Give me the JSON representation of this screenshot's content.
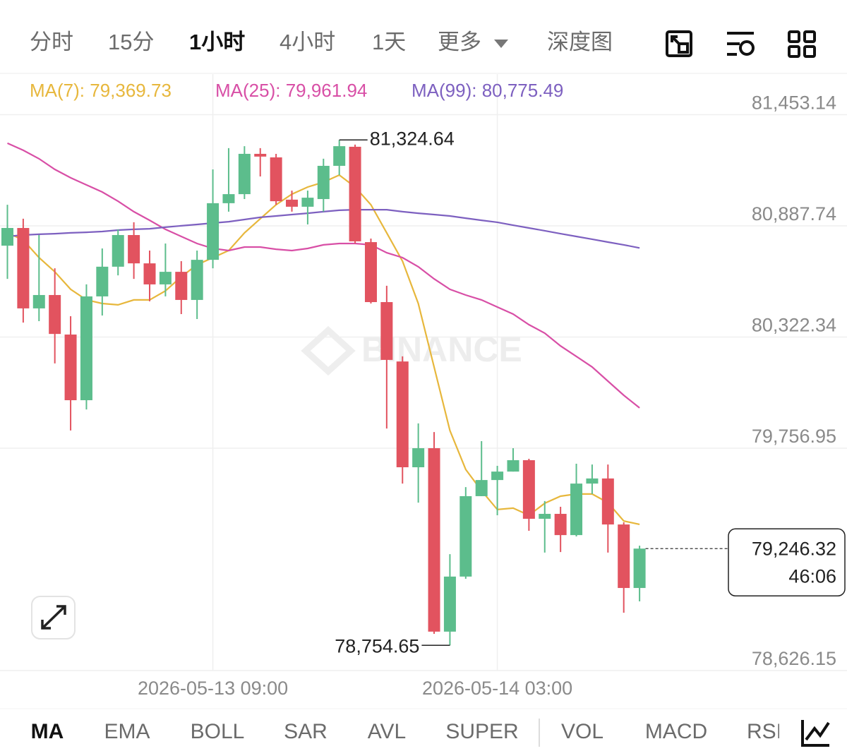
{
  "tabs": [
    "分时",
    "15分",
    "1小时",
    "4小时",
    "1天",
    "更多",
    "深度图"
  ],
  "indicators": [
    "MA",
    "EMA",
    "BOLL",
    "SAR",
    "AVL",
    "SUPER",
    "VOL",
    "MACD",
    "RSI"
  ],
  "chart_data": {
    "type": "candlestick",
    "watermark": "BINANCE",
    "categories": [
      null,
      null,
      null,
      null,
      null,
      null,
      null,
      null,
      null,
      null,
      null,
      null,
      null,
      "2026-05-13 09:00",
      null,
      null,
      null,
      null,
      null,
      null,
      null,
      null,
      null,
      null,
      null,
      null,
      null,
      null,
      null,
      null,
      null,
      "2026-05-14 03:00",
      null,
      null,
      null,
      null,
      null,
      null,
      null,
      null,
      null
    ],
    "open": [
      80787,
      80877,
      80468,
      80536,
      80335,
      80001,
      80529,
      80680,
      80841,
      80697,
      80590,
      80654,
      80511,
      80715,
      81003,
      81049,
      81254,
      81236,
      81021,
      80985,
      81024,
      81193,
      81290,
      80805,
      80500,
      80198,
      79660,
      79757,
      78824,
      79104,
      79513,
      79595,
      79638,
      79696,
      79398,
      79423,
      79315,
      79577,
      79603,
      79369,
      79046
    ],
    "high": [
      80995,
      80924,
      80841,
      80672,
      80428,
      80590,
      80773,
      80870,
      80906,
      80762,
      80798,
      80708,
      80762,
      81175,
      81283,
      81293,
      81283,
      81254,
      81067,
      81067,
      81229,
      81324.64,
      81301,
      80823,
      80583,
      80224,
      79883,
      79839,
      79218,
      79559,
      79793,
      79667,
      79757,
      79703,
      79488,
      79459,
      79678,
      79674,
      79674,
      79380,
      79261
    ],
    "low": [
      80618,
      80396,
      80403,
      80188,
      79847,
      79954,
      80432,
      80636,
      80618,
      80504,
      80529,
      80439,
      80414,
      80672,
      80960,
      81024,
      81139,
      80995,
      80960,
      80895,
      80960,
      81146,
      80798,
      80493,
      79857,
      79577,
      79480,
      78813,
      78754.65,
      79093,
      79513,
      79416,
      79638,
      79337,
      79226,
      79229,
      79308,
      79524,
      79226,
      78920,
      78978
    ],
    "close": [
      80877,
      80468,
      80536,
      80338,
      80001,
      80529,
      80680,
      80841,
      80697,
      80590,
      80654,
      80511,
      80715,
      81003,
      81049,
      81254,
      81240,
      81013,
      80985,
      81031,
      81193,
      81293,
      80809,
      80500,
      80206,
      79660,
      79757,
      78824,
      79104,
      79513,
      79595,
      79638,
      79696,
      79398,
      79423,
      79315,
      79577,
      79603,
      79369,
      79046,
      79246.32
    ],
    "high_value_labels": [
      null,
      null,
      null,
      null,
      null,
      null,
      null,
      null,
      null,
      null,
      null,
      null,
      null,
      null,
      null,
      null,
      null,
      null,
      null,
      null,
      null,
      "81,324.64",
      null,
      null,
      null,
      null,
      null,
      null,
      null,
      null,
      null,
      null,
      null,
      null,
      null,
      null,
      null,
      null,
      null,
      null,
      null
    ],
    "low_value_labels": [
      null,
      null,
      null,
      null,
      null,
      null,
      null,
      null,
      null,
      null,
      null,
      null,
      null,
      null,
      null,
      null,
      null,
      null,
      null,
      null,
      null,
      null,
      null,
      null,
      null,
      null,
      null,
      null,
      "78,754.65",
      null,
      null,
      null,
      null,
      null,
      null,
      null,
      null,
      null,
      null,
      null,
      null
    ],
    "close_value_labels": [
      null,
      null,
      null,
      null,
      null,
      null,
      null,
      null,
      null,
      null,
      null,
      null,
      null,
      null,
      null,
      null,
      null,
      null,
      null,
      null,
      null,
      null,
      null,
      null,
      null,
      null,
      null,
      null,
      null,
      null,
      null,
      null,
      null,
      null,
      null,
      null,
      null,
      null,
      null,
      null,
      "79,246.32"
    ],
    "countdown": "46:06",
    "up_color": "#5cbd8c",
    "down_color": "#e2535f",
    "series": [
      {
        "name": "MA(7):",
        "value_label": "79,369.73",
        "color": "#e7b73c",
        "values": [
          80852,
          80816,
          80726,
          80654,
          80565,
          80511,
          80493,
          80486,
          80511,
          80511,
          80557,
          80629,
          80690,
          80726,
          80762,
          80852,
          80924,
          80995,
          81049,
          81085,
          81110,
          81146,
          81085,
          80995,
          80852,
          80708,
          80493,
          80170,
          79847,
          79649,
          79541,
          79445,
          79452,
          79416,
          79477,
          79513,
          79524,
          79524,
          79480,
          79387,
          79369.73
        ]
      },
      {
        "name": "MA(25):",
        "value_label": "79,961.94",
        "color": "#d84fa6",
        "values": [
          81308,
          81272,
          81229,
          81175,
          81132,
          81096,
          81060,
          81013,
          80960,
          80916,
          80870,
          80834,
          80798,
          80773,
          80762,
          80780,
          80780,
          80769,
          80762,
          80773,
          80791,
          80798,
          80798,
          80791,
          80751,
          80726,
          80680,
          80618,
          80565,
          80536,
          80511,
          80475,
          80439,
          80385,
          80342,
          80277,
          80224,
          80170,
          80098,
          80026,
          79961.94
        ]
      },
      {
        "name": "MA(99):",
        "value_label": "80,775.49",
        "color": "#7d60c0",
        "values": [
          80834,
          80841,
          80845,
          80848,
          80852,
          80855,
          80859,
          80866,
          80870,
          80873,
          80881,
          80888,
          80895,
          80902,
          80909,
          80920,
          80931,
          80938,
          80945,
          80952,
          80960,
          80967,
          80970,
          80970,
          80970,
          80960,
          80952,
          80945,
          80938,
          80927,
          80916,
          80906,
          80891,
          80877,
          80863,
          80848,
          80834,
          80820,
          80805,
          80791,
          80775.49
        ]
      }
    ],
    "ylim": [
      78626.15,
      81659.5
    ],
    "yticks": [
      {
        "value": 81453.14,
        "label": "81,453.14"
      },
      {
        "value": 80887.74,
        "label": "80,887.74"
      },
      {
        "value": 80322.34,
        "label": "80,322.34"
      },
      {
        "value": 79756.95,
        "label": "79,756.95"
      },
      {
        "value": 78626.15,
        "label": "78,626.15"
      }
    ],
    "grid": true
  }
}
